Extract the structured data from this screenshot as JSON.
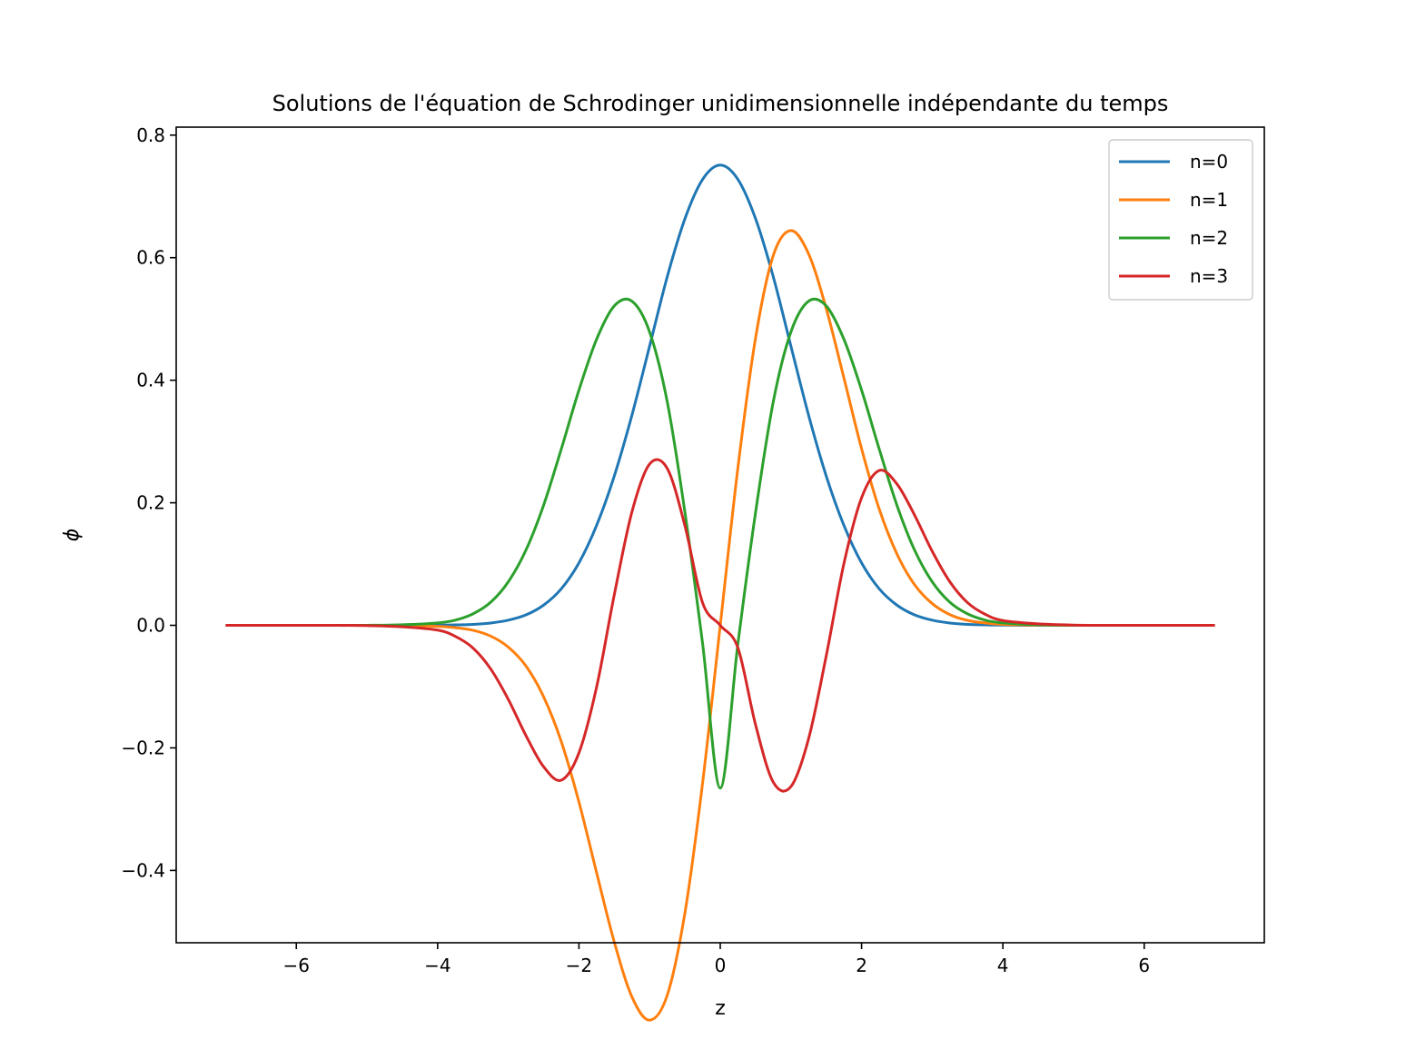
{
  "chart_data": {
    "type": "line",
    "title": "Solutions de l'équation de Schrodinger unidimensionnelle indépendante du temps",
    "xlabel": "z",
    "ylabel": "ϕ",
    "xlim": [
      -7.7,
      7.7
    ],
    "ylim": [
      -0.518,
      0.813
    ],
    "x_ticks": [
      -6,
      -4,
      -2,
      0,
      2,
      4,
      6
    ],
    "x_tick_labels": [
      "−6",
      "−4",
      "−2",
      "0",
      "2",
      "4",
      "6"
    ],
    "y_ticks": [
      -0.4,
      -0.2,
      0.0,
      0.2,
      0.4,
      0.6,
      0.8
    ],
    "y_tick_labels": [
      "−0.4",
      "−0.2",
      "0.0",
      "0.2",
      "0.4",
      "0.6",
      "0.8"
    ],
    "grid": false,
    "legend_position": "top-right",
    "x": [
      -7.0,
      -6.5,
      -6.0,
      -5.5,
      -5.0,
      -4.5,
      -4.0,
      -3.75,
      -3.5,
      -3.25,
      -3.0,
      -2.75,
      -2.5,
      -2.25,
      -2.0,
      -1.75,
      -1.5,
      -1.25,
      -1.0,
      -0.75,
      -0.5,
      -0.25,
      0.0,
      0.25,
      0.5,
      0.75,
      1.0,
      1.25,
      1.5,
      1.75,
      2.0,
      2.25,
      2.5,
      2.75,
      3.0,
      3.25,
      3.5,
      3.75,
      4.0,
      4.5,
      5.0,
      5.5,
      6.0,
      6.5,
      7.0
    ],
    "series": [
      {
        "name": "n=0",
        "color": "#1f77b4",
        "values": [
          0.0,
          0.0,
          0.0,
          0.0,
          0.0,
          0.0,
          0.0003,
          0.0007,
          0.0016,
          0.0038,
          0.0084,
          0.017,
          0.033,
          0.0596,
          0.1019,
          0.1631,
          0.2436,
          0.343,
          0.4556,
          0.569,
          0.6635,
          0.7277,
          0.7511,
          0.7277,
          0.6635,
          0.569,
          0.4556,
          0.343,
          0.2436,
          0.1631,
          0.1019,
          0.0596,
          0.033,
          0.017,
          0.0084,
          0.0038,
          0.0016,
          0.0007,
          0.0003,
          0.0,
          0.0,
          0.0,
          0.0,
          0.0,
          0.0
        ]
      },
      {
        "name": "n=1",
        "color": "#ff7f0e",
        "values": [
          0.0,
          0.0,
          0.0,
          0.0,
          -0.0001,
          -0.0004,
          -0.0016,
          -0.0038,
          -0.008,
          -0.0175,
          -0.0355,
          -0.0663,
          -0.1166,
          -0.1897,
          -0.2883,
          -0.4037,
          -0.5168,
          -0.6063,
          -0.6443,
          -0.6035,
          -0.4692,
          -0.2573,
          0.0,
          0.2573,
          0.4692,
          0.6035,
          0.6443,
          0.6063,
          0.5168,
          0.4037,
          0.2883,
          0.1897,
          0.1166,
          0.0663,
          0.0355,
          0.0175,
          0.008,
          0.0038,
          0.0016,
          0.0004,
          0.0001,
          0.0,
          0.0,
          0.0,
          0.0
        ]
      },
      {
        "name": "n=2",
        "color": "#2ca02c",
        "values": [
          0.0,
          0.0,
          0.0,
          0.0,
          0.0001,
          0.001,
          0.004,
          0.0085,
          0.0187,
          0.0376,
          0.071,
          0.1228,
          0.1961,
          0.2876,
          0.3839,
          0.4669,
          0.5213,
          0.529,
          0.4788,
          0.3646,
          0.1845,
          -0.0298,
          -0.2656,
          -0.0298,
          0.1845,
          0.3646,
          0.4788,
          0.529,
          0.5213,
          0.4669,
          0.3839,
          0.2876,
          0.1961,
          0.1228,
          0.071,
          0.0376,
          0.0187,
          0.0085,
          0.004,
          0.001,
          0.0001,
          0.0,
          0.0,
          0.0,
          0.0
        ]
      },
      {
        "name": "n=3",
        "color": "#d62728",
        "values": [
          0.0,
          0.0,
          0.0,
          0.0,
          -0.0004,
          -0.0024,
          -0.0078,
          -0.018,
          -0.037,
          -0.071,
          -0.1208,
          -0.1799,
          -0.2308,
          -0.2527,
          -0.2081,
          -0.1007,
          0.0497,
          0.1851,
          0.2632,
          0.2559,
          0.1625,
          0.0368,
          0.0,
          -0.0368,
          -0.1625,
          -0.2559,
          -0.2632,
          -0.1851,
          -0.0497,
          0.1007,
          0.2081,
          0.2527,
          0.2308,
          0.1799,
          0.1208,
          0.071,
          0.037,
          0.018,
          0.0078,
          0.0024,
          0.0004,
          0.0,
          0.0,
          0.0,
          0.0
        ]
      }
    ]
  }
}
